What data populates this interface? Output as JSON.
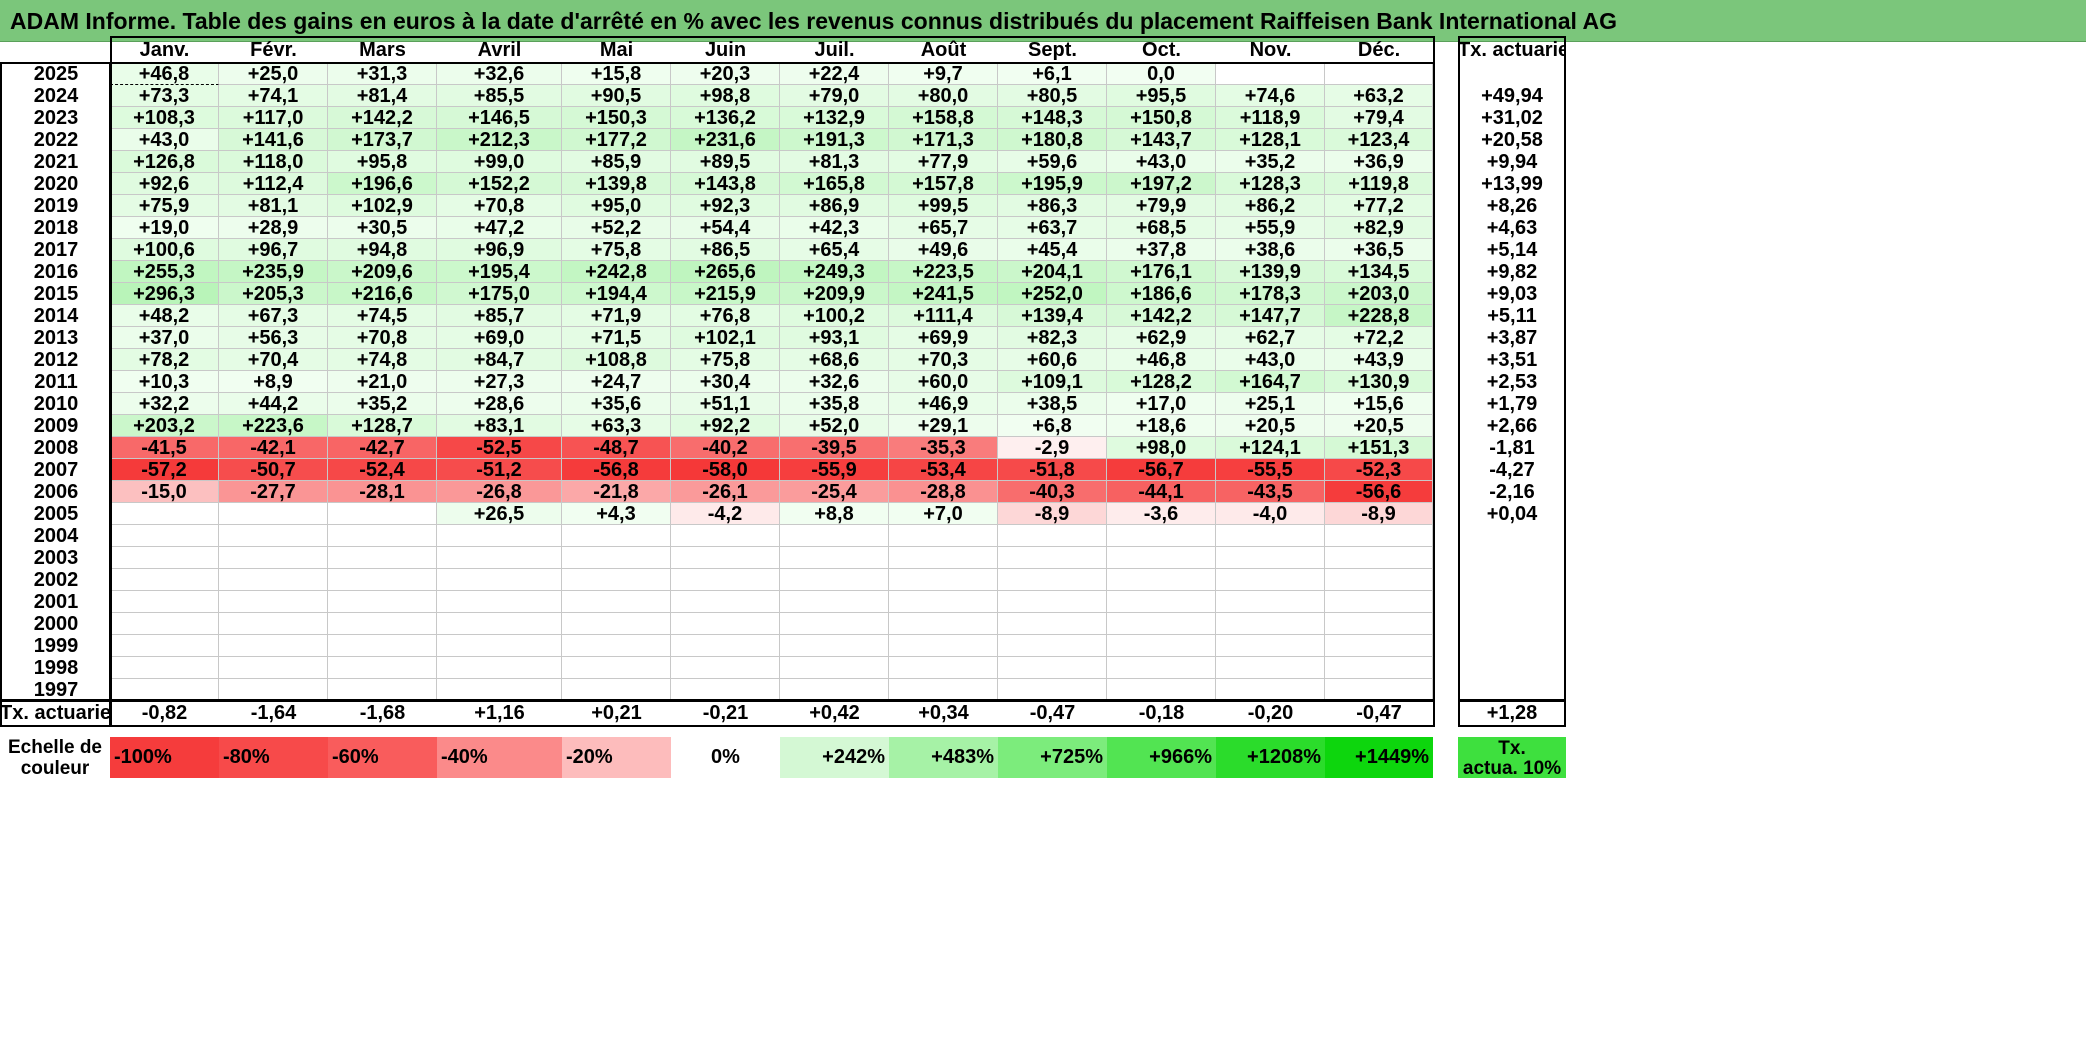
{
  "title": "ADAM Informe. Table des gains en euros à la date d'arrêté en % avec les revenus connus distribués du placement Raiffeisen Bank International AG",
  "months": [
    "Janv.",
    "Févr.",
    "Mars",
    "Avril",
    "Mai",
    "Juin",
    "Juil.",
    "Août",
    "Sept.",
    "Oct.",
    "Nov.",
    "Déc."
  ],
  "rate_header": "Tx. actuariel",
  "rows": [
    {
      "year": "2025",
      "values": [
        "+46,8",
        "+25,0",
        "+31,3",
        "+32,6",
        "+15,8",
        "+20,3",
        "+22,4",
        "+9,7",
        "+6,1",
        "0,0",
        "",
        ""
      ],
      "rate": ""
    },
    {
      "year": "2024",
      "values": [
        "+73,3",
        "+74,1",
        "+81,4",
        "+85,5",
        "+90,5",
        "+98,8",
        "+79,0",
        "+80,0",
        "+80,5",
        "+95,5",
        "+74,6",
        "+63,2"
      ],
      "rate": "+49,94"
    },
    {
      "year": "2023",
      "values": [
        "+108,3",
        "+117,0",
        "+142,2",
        "+146,5",
        "+150,3",
        "+136,2",
        "+132,9",
        "+158,8",
        "+148,3",
        "+150,8",
        "+118,9",
        "+79,4"
      ],
      "rate": "+31,02"
    },
    {
      "year": "2022",
      "values": [
        "+43,0",
        "+141,6",
        "+173,7",
        "+212,3",
        "+177,2",
        "+231,6",
        "+191,3",
        "+171,3",
        "+180,8",
        "+143,7",
        "+128,1",
        "+123,4"
      ],
      "rate": "+20,58"
    },
    {
      "year": "2021",
      "values": [
        "+126,8",
        "+118,0",
        "+95,8",
        "+99,0",
        "+85,9",
        "+89,5",
        "+81,3",
        "+77,9",
        "+59,6",
        "+43,0",
        "+35,2",
        "+36,9"
      ],
      "rate": "+9,94"
    },
    {
      "year": "2020",
      "values": [
        "+92,6",
        "+112,4",
        "+196,6",
        "+152,2",
        "+139,8",
        "+143,8",
        "+165,8",
        "+157,8",
        "+195,9",
        "+197,2",
        "+128,3",
        "+119,8"
      ],
      "rate": "+13,99"
    },
    {
      "year": "2019",
      "values": [
        "+75,9",
        "+81,1",
        "+102,9",
        "+70,8",
        "+95,0",
        "+92,3",
        "+86,9",
        "+99,5",
        "+86,3",
        "+79,9",
        "+86,2",
        "+77,2"
      ],
      "rate": "+8,26"
    },
    {
      "year": "2018",
      "values": [
        "+19,0",
        "+28,9",
        "+30,5",
        "+47,2",
        "+52,2",
        "+54,4",
        "+42,3",
        "+65,7",
        "+63,7",
        "+68,5",
        "+55,9",
        "+82,9"
      ],
      "rate": "+4,63"
    },
    {
      "year": "2017",
      "values": [
        "+100,6",
        "+96,7",
        "+94,8",
        "+96,9",
        "+75,8",
        "+86,5",
        "+65,4",
        "+49,6",
        "+45,4",
        "+37,8",
        "+38,6",
        "+36,5"
      ],
      "rate": "+5,14"
    },
    {
      "year": "2016",
      "values": [
        "+255,3",
        "+235,9",
        "+209,6",
        "+195,4",
        "+242,8",
        "+265,6",
        "+249,3",
        "+223,5",
        "+204,1",
        "+176,1",
        "+139,9",
        "+134,5"
      ],
      "rate": "+9,82"
    },
    {
      "year": "2015",
      "values": [
        "+296,3",
        "+205,3",
        "+216,6",
        "+175,0",
        "+194,4",
        "+215,9",
        "+209,9",
        "+241,5",
        "+252,0",
        "+186,6",
        "+178,3",
        "+203,0"
      ],
      "rate": "+9,03"
    },
    {
      "year": "2014",
      "values": [
        "+48,2",
        "+67,3",
        "+74,5",
        "+85,7",
        "+71,9",
        "+76,8",
        "+100,2",
        "+111,4",
        "+139,4",
        "+142,2",
        "+147,7",
        "+228,8"
      ],
      "rate": "+5,11"
    },
    {
      "year": "2013",
      "values": [
        "+37,0",
        "+56,3",
        "+70,8",
        "+69,0",
        "+71,5",
        "+102,1",
        "+93,1",
        "+69,9",
        "+82,3",
        "+62,9",
        "+62,7",
        "+72,2"
      ],
      "rate": "+3,87"
    },
    {
      "year": "2012",
      "values": [
        "+78,2",
        "+70,4",
        "+74,8",
        "+84,7",
        "+108,8",
        "+75,8",
        "+68,6",
        "+70,3",
        "+60,6",
        "+46,8",
        "+43,0",
        "+43,9"
      ],
      "rate": "+3,51"
    },
    {
      "year": "2011",
      "values": [
        "+10,3",
        "+8,9",
        "+21,0",
        "+27,3",
        "+24,7",
        "+30,4",
        "+32,6",
        "+60,0",
        "+109,1",
        "+128,2",
        "+164,7",
        "+130,9"
      ],
      "rate": "+2,53"
    },
    {
      "year": "2010",
      "values": [
        "+32,2",
        "+44,2",
        "+35,2",
        "+28,6",
        "+35,6",
        "+51,1",
        "+35,8",
        "+46,9",
        "+38,5",
        "+17,0",
        "+25,1",
        "+15,6"
      ],
      "rate": "+1,79"
    },
    {
      "year": "2009",
      "values": [
        "+203,2",
        "+223,6",
        "+128,7",
        "+83,1",
        "+63,3",
        "+92,2",
        "+52,0",
        "+29,1",
        "+6,8",
        "+18,6",
        "+20,5",
        "+20,5"
      ],
      "rate": "+2,66"
    },
    {
      "year": "2008",
      "values": [
        "-41,5",
        "-42,1",
        "-42,7",
        "-52,5",
        "-48,7",
        "-40,2",
        "-39,5",
        "-35,3",
        "-2,9",
        "+98,0",
        "+124,1",
        "+151,3"
      ],
      "rate": "-1,81"
    },
    {
      "year": "2007",
      "values": [
        "-57,2",
        "-50,7",
        "-52,4",
        "-51,2",
        "-56,8",
        "-58,0",
        "-55,9",
        "-53,4",
        "-51,8",
        "-56,7",
        "-55,5",
        "-52,3"
      ],
      "rate": "-4,27"
    },
    {
      "year": "2006",
      "values": [
        "-15,0",
        "-27,7",
        "-28,1",
        "-26,8",
        "-21,8",
        "-26,1",
        "-25,4",
        "-28,8",
        "-40,3",
        "-44,1",
        "-43,5",
        "-56,6"
      ],
      "rate": "-2,16"
    },
    {
      "year": "2005",
      "values": [
        "",
        "",
        "",
        "+26,5",
        "+4,3",
        "-4,2",
        "+8,8",
        "+7,0",
        "-8,9",
        "-3,6",
        "-4,0",
        "-8,9"
      ],
      "rate": "+0,04"
    },
    {
      "year": "2004",
      "values": [
        "",
        "",
        "",
        "",
        "",
        "",
        "",
        "",
        "",
        "",
        "",
        ""
      ],
      "rate": ""
    },
    {
      "year": "2003",
      "values": [
        "",
        "",
        "",
        "",
        "",
        "",
        "",
        "",
        "",
        "",
        "",
        ""
      ],
      "rate": ""
    },
    {
      "year": "2002",
      "values": [
        "",
        "",
        "",
        "",
        "",
        "",
        "",
        "",
        "",
        "",
        "",
        ""
      ],
      "rate": ""
    },
    {
      "year": "2001",
      "values": [
        "",
        "",
        "",
        "",
        "",
        "",
        "",
        "",
        "",
        "",
        "",
        ""
      ],
      "rate": ""
    },
    {
      "year": "2000",
      "values": [
        "",
        "",
        "",
        "",
        "",
        "",
        "",
        "",
        "",
        "",
        "",
        ""
      ],
      "rate": ""
    },
    {
      "year": "1999",
      "values": [
        "",
        "",
        "",
        "",
        "",
        "",
        "",
        "",
        "",
        "",
        "",
        ""
      ],
      "rate": ""
    },
    {
      "year": "1998",
      "values": [
        "",
        "",
        "",
        "",
        "",
        "",
        "",
        "",
        "",
        "",
        "",
        ""
      ],
      "rate": ""
    },
    {
      "year": "1997",
      "values": [
        "",
        "",
        "",
        "",
        "",
        "",
        "",
        "",
        "",
        "",
        "",
        ""
      ],
      "rate": ""
    }
  ],
  "footer": {
    "label": "Tx. actuariel",
    "values": [
      "-0,82",
      "-1,64",
      "-1,68",
      "+1,16",
      "+0,21",
      "-0,21",
      "+0,42",
      "+0,34",
      "-0,47",
      "-0,18",
      "-0,20",
      "-0,47"
    ],
    "total": "+1,28"
  },
  "color_scale": {
    "label_line1": "Echelle de",
    "label_line2": "couleur",
    "cells": [
      {
        "text": "-100%",
        "color": "#f53c3c",
        "align": "left"
      },
      {
        "text": "-80%",
        "color": "#f74a4a",
        "align": "left"
      },
      {
        "text": "-60%",
        "color": "#f95c5c",
        "align": "left"
      },
      {
        "text": "-40%",
        "color": "#fb8a8a",
        "align": "left"
      },
      {
        "text": "-20%",
        "color": "#fdbcbc",
        "align": "left"
      },
      {
        "text": "0%",
        "color": "#ffffff",
        "align": "center"
      },
      {
        "text": "+242%",
        "color": "#d4f8d4",
        "align": "right"
      },
      {
        "text": "+483%",
        "color": "#a6f2a6",
        "align": "right"
      },
      {
        "text": "+725%",
        "color": "#7cec7c",
        "align": "right"
      },
      {
        "text": "+966%",
        "color": "#52e452",
        "align": "right"
      },
      {
        "text": "+1208%",
        "color": "#2bdc2b",
        "align": "right"
      },
      {
        "text": "+1449%",
        "color": "#0dd60d",
        "align": "right"
      }
    ],
    "rate_line1": "Tx.",
    "rate_line2": "actua. 10%",
    "rate_color": "#3ee03e"
  }
}
